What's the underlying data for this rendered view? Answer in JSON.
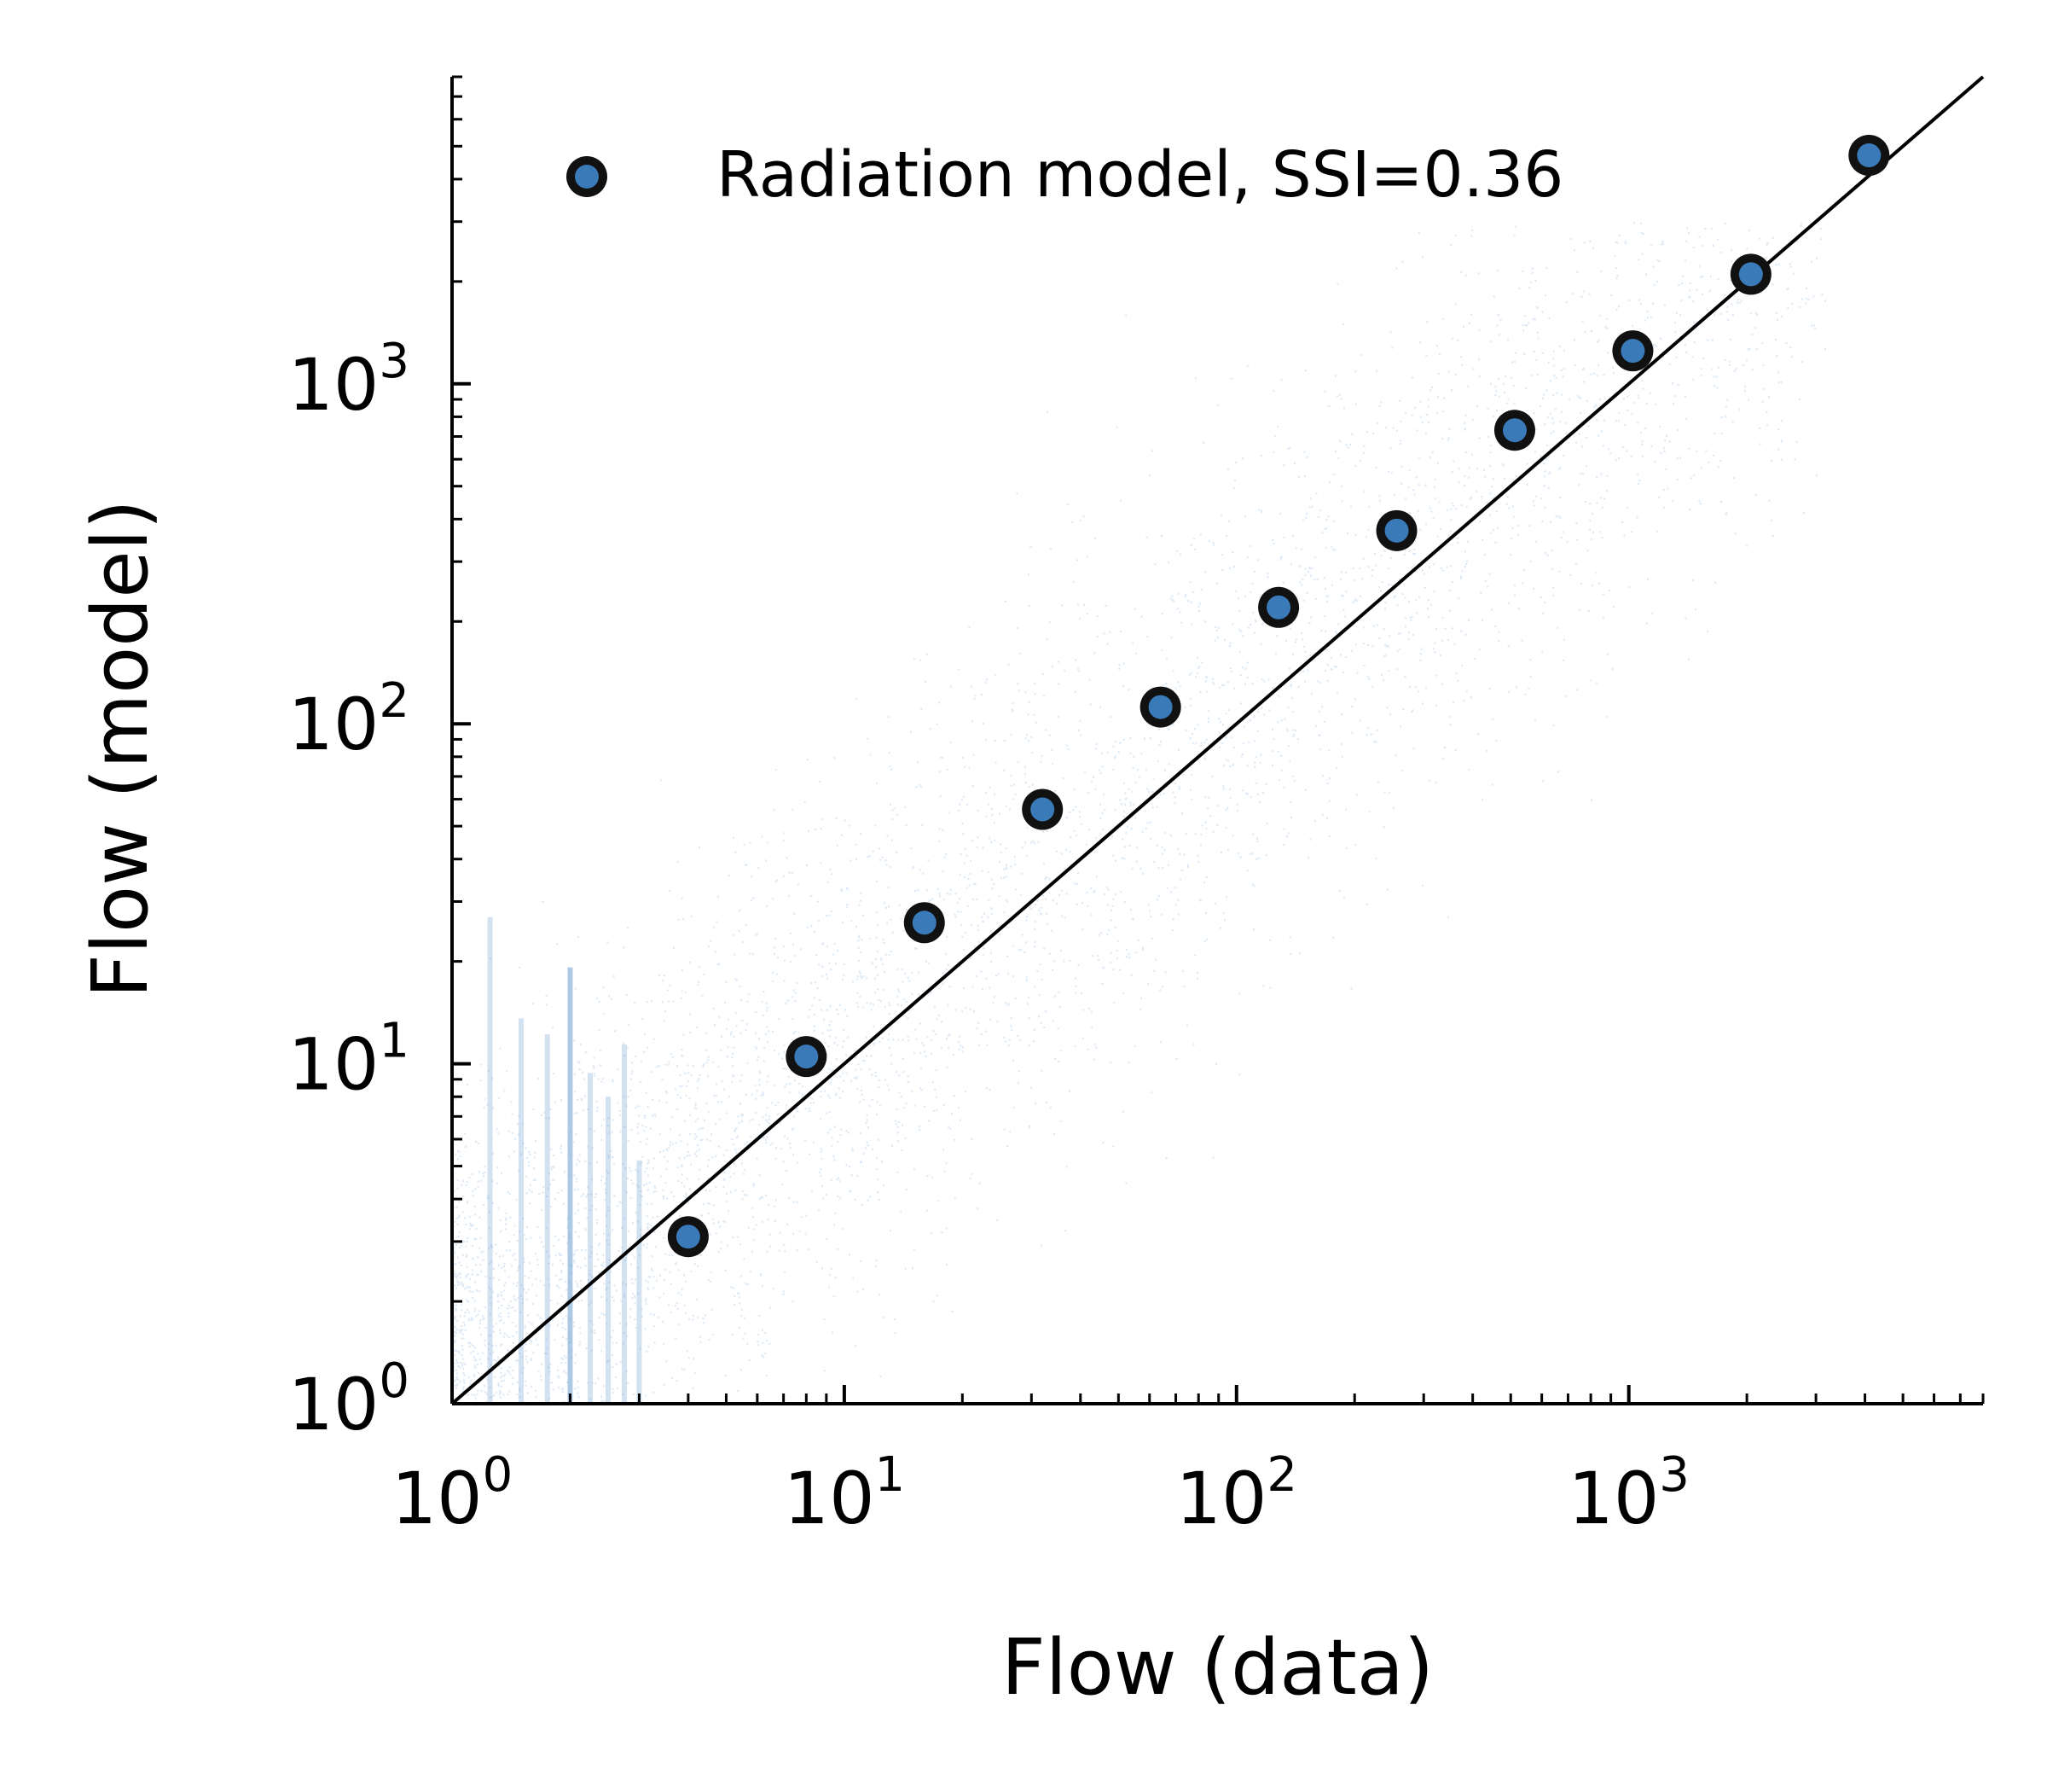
{
  "chart_data": {
    "type": "scatter",
    "xlabel": "Flow (data)",
    "ylabel": "Flow (model)",
    "xscale": "log",
    "yscale": "log",
    "xlim": [
      1,
      8000
    ],
    "ylim": [
      1,
      8000
    ],
    "x_ticks": [
      {
        "base": "10",
        "exp": "0",
        "value": 1
      },
      {
        "base": "10",
        "exp": "1",
        "value": 10
      },
      {
        "base": "10",
        "exp": "2",
        "value": 100
      },
      {
        "base": "10",
        "exp": "3",
        "value": 1000
      }
    ],
    "y_ticks": [
      {
        "base": "10",
        "exp": "0",
        "value": 1
      },
      {
        "base": "10",
        "exp": "1",
        "value": 10
      },
      {
        "base": "10",
        "exp": "2",
        "value": 100
      },
      {
        "base": "10",
        "exp": "3",
        "value": 1000
      }
    ],
    "reference_line": "y = x",
    "legend": {
      "placement": "top",
      "label": "Radiation model, SSI=0.36"
    },
    "colors": {
      "points": "#3a7ab8",
      "marker_edge": "#111111",
      "line": "#000000",
      "cloud": "#6a9fd0"
    },
    "series": [
      {
        "name": "Radiation model, SSI=0.36",
        "x": [
          4,
          8,
          16,
          32,
          64,
          128,
          256,
          512,
          1024,
          2048,
          4096
        ],
        "y": [
          3.1,
          10.5,
          26,
          56,
          112,
          220,
          370,
          730,
          1250,
          2100,
          4700
        ]
      }
    ],
    "background_cloud": {
      "description": "dense faint scatter of individual flows around the diagonal",
      "x_range": [
        1,
        4000
      ],
      "y_range": [
        1,
        2000
      ]
    }
  }
}
